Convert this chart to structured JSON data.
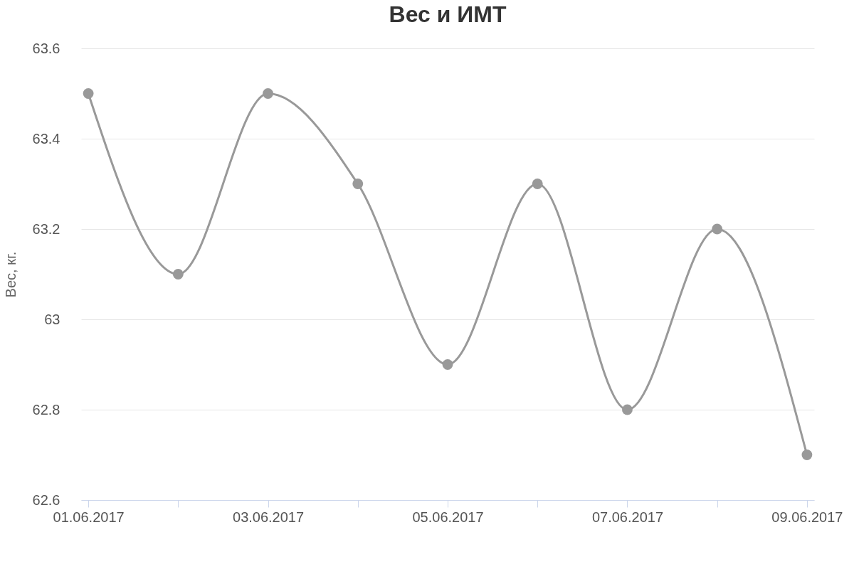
{
  "chart_data": {
    "type": "line",
    "title": "Вес и ИМТ",
    "ylabel": "Вес, кг.",
    "categories": [
      "01.06.2017",
      null,
      "03.06.2017",
      null,
      "05.06.2017",
      null,
      "07.06.2017",
      null,
      "09.06.2017"
    ],
    "series": [
      {
        "color": "#999999",
        "values": [
          63.5,
          63.1,
          63.5,
          63.3,
          62.9,
          63.3,
          62.8,
          63.2,
          62.7
        ]
      }
    ],
    "ylim": [
      62.6,
      63.6
    ],
    "yticks": [
      62.6,
      62.8,
      63,
      63.2,
      63.4,
      63.6
    ],
    "grid": "y",
    "marker": "circle",
    "line_style": "solid"
  }
}
